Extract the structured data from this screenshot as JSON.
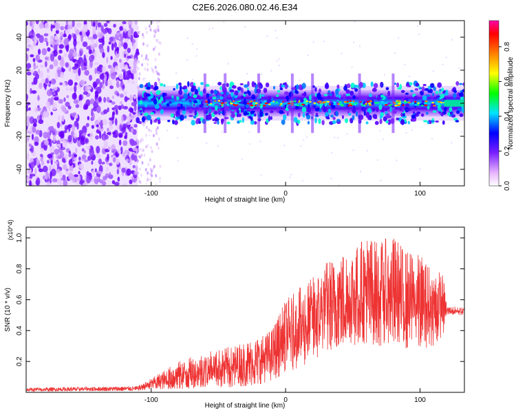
{
  "figure": {
    "title": "C2E6.2026.080.02.46.E34"
  },
  "chart_data": [
    {
      "type": "heatmap",
      "title": "C2E6.2026.080.02.46.E34",
      "xlabel": "Height of straight line (km)",
      "ylabel": "Frequency (Hz)",
      "xlim": [
        -193,
        133
      ],
      "ylim": [
        -50,
        50
      ],
      "xticks": [
        -100,
        0,
        100
      ],
      "yticks": [
        -40,
        -20,
        0,
        20,
        40
      ],
      "xtick_labels": [
        "-100",
        "0",
        "100"
      ],
      "ytick_labels": [
        "-40",
        "-20",
        "0",
        "20",
        "40"
      ],
      "grid": false,
      "colorbar": {
        "label": "Normalized spectral amplitude",
        "range": [
          0,
          0.95
        ],
        "ticks": [
          0.0,
          0.2,
          0.4,
          0.6,
          0.8
        ],
        "tick_labels": [
          "0.0",
          "0.2",
          "0.4",
          "0.6",
          "0.8"
        ],
        "colormap": [
          "#ffffff",
          "#e6b3ff",
          "#9a4dff",
          "#6a00ff",
          "#0000ff",
          "#00e5ff",
          "#00ff00",
          "#ffff00",
          "#ff8000",
          "#ff0000",
          "#ff00ff"
        ]
      },
      "regions": [
        {
          "name": "noise",
          "x": [
            -193,
            -110
          ],
          "y": [
            -50,
            50
          ],
          "amplitude": 0.05
        },
        {
          "name": "sparse-edge",
          "x": [
            -110,
            -93
          ],
          "y": [
            -50,
            50
          ],
          "amplitude": 0.02
        },
        {
          "name": "signal-band",
          "x": [
            -110,
            133
          ],
          "y": [
            -8,
            8
          ],
          "center_freq": 0,
          "amplitude": 0.4
        },
        {
          "name": "band-end",
          "x": [
            118,
            133
          ],
          "y": [
            -2,
            2
          ],
          "amplitude": 0.35
        }
      ]
    },
    {
      "type": "line",
      "title": "",
      "xlabel": "Height of straight line (km)",
      "ylabel": "SNR (10 * v/v)",
      "y_multiplier": "(x10^4)",
      "xlim": [
        -193,
        133
      ],
      "ylim": [
        0,
        1.07
      ],
      "xticks": [
        -100,
        0,
        100
      ],
      "yticks": [
        0.2,
        0.4,
        0.6,
        0.8,
        1.0
      ],
      "xtick_labels": [
        "-100",
        "0",
        "100"
      ],
      "ytick_labels": [
        "0.2",
        "0.4",
        "0.6",
        "0.8",
        "1.0"
      ],
      "grid": false,
      "series": [
        {
          "name": "SNR",
          "color": "#ee3333",
          "envelope": {
            "x": [
              -193,
              -110,
              -100,
              -80,
              -60,
              -40,
              -20,
              -10,
              0,
              20,
              30,
              40,
              50,
              60,
              70,
              80,
              90,
              100,
              110,
              117,
              120,
              133
            ],
            "low": [
              0.005,
              0.01,
              0.02,
              0.02,
              0.03,
              0.03,
              0.05,
              0.08,
              0.12,
              0.2,
              0.26,
              0.3,
              0.3,
              0.32,
              0.3,
              0.3,
              0.28,
              0.28,
              0.3,
              0.35,
              0.5,
              0.5
            ],
            "high": [
              0.03,
              0.04,
              0.09,
              0.2,
              0.26,
              0.3,
              0.36,
              0.42,
              0.6,
              0.75,
              0.85,
              0.9,
              0.95,
              1.03,
              0.98,
              1.02,
              0.92,
              0.9,
              0.8,
              0.78,
              0.56,
              0.55
            ]
          }
        }
      ]
    }
  ]
}
